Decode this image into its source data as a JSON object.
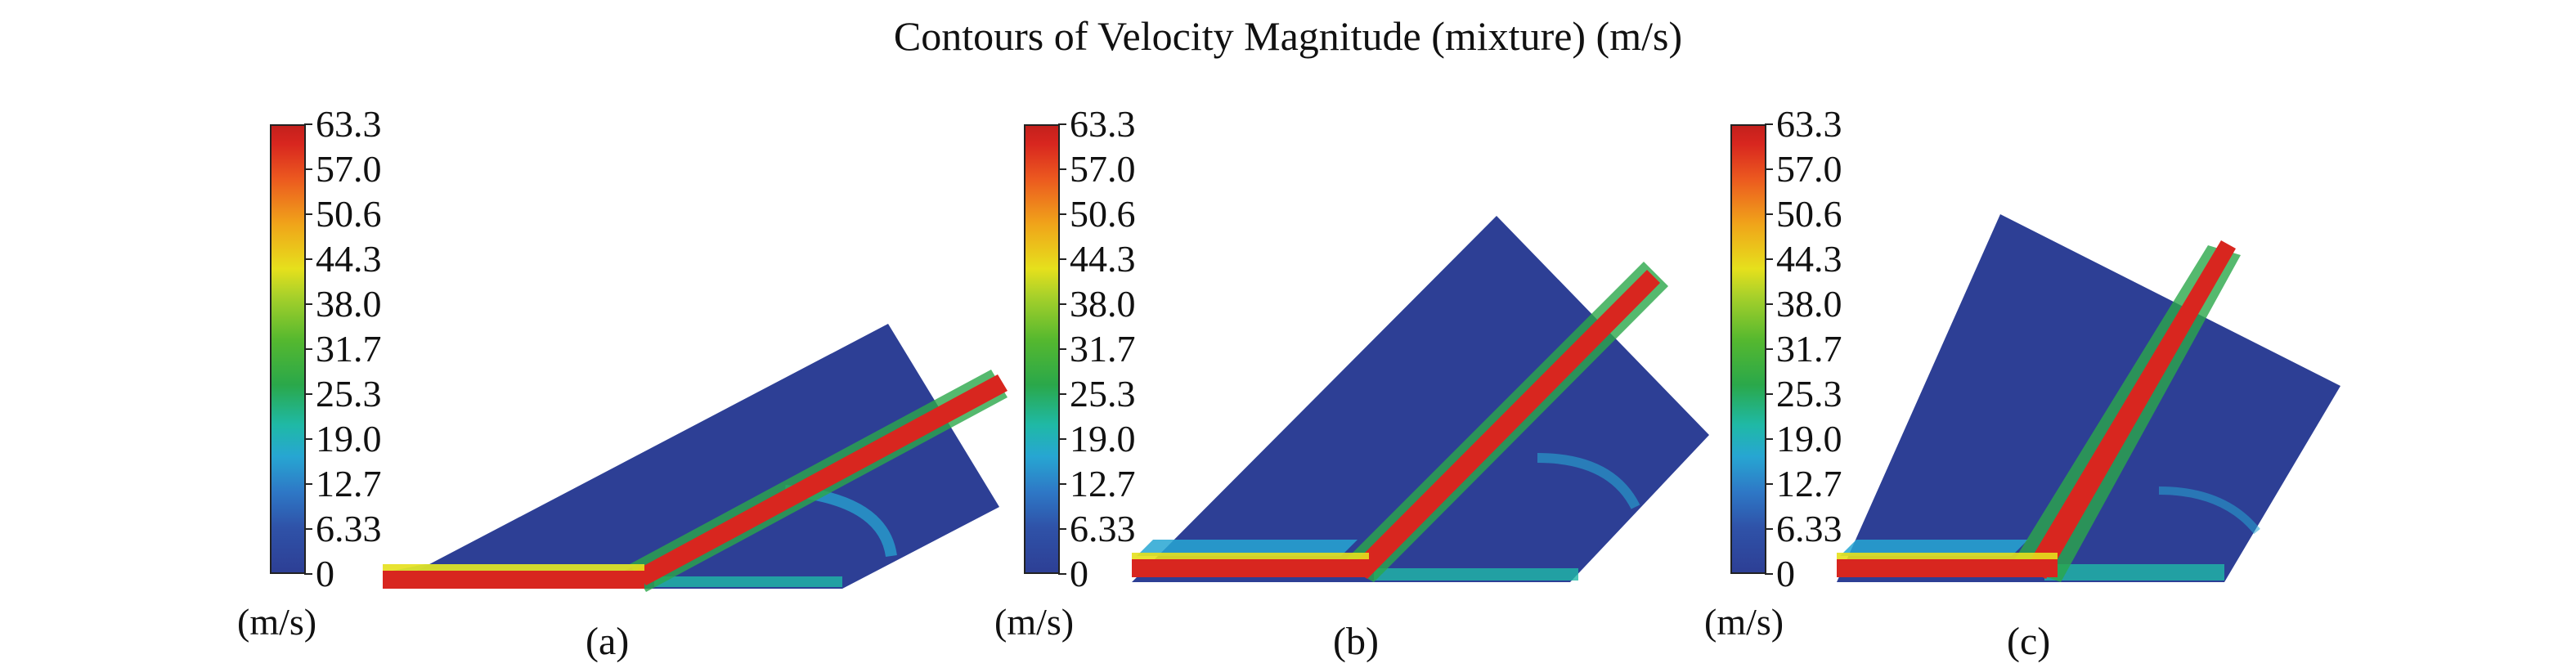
{
  "title": "Contours of Velocity Magnitude (mixture) (m/s)",
  "colorbar": {
    "ticks": [
      "63.3",
      "57.0",
      "50.6",
      "44.3",
      "38.0",
      "31.7",
      "25.3",
      "19.0",
      "12.7",
      "6.33",
      "0"
    ],
    "unit": "(m/s)",
    "colors": {
      "low": "#2d3f95",
      "mid_low": "#27a6d2",
      "mid": "#55b82f",
      "mid_high": "#e6e01c",
      "high": "#d8261f"
    }
  },
  "panels": [
    {
      "caption": "(a)"
    },
    {
      "caption": "(b)"
    },
    {
      "caption": "(c)"
    }
  ]
}
